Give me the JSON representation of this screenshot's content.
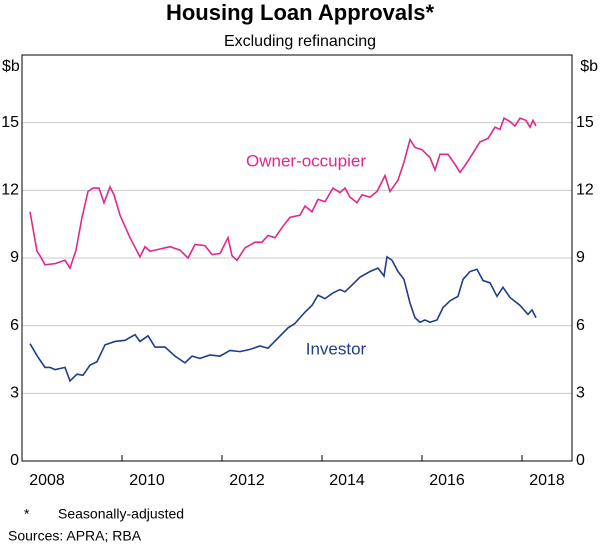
{
  "chart_data": {
    "type": "line",
    "title": "Housing Loan Approvals*",
    "subtitle": "Excluding refinancing",
    "y_label": "$b",
    "y2_label": "$b",
    "footnote_marker": "*",
    "footnote": "Seasonally-adjusted",
    "sources": "Sources: APRA; RBA",
    "xlim": [
      2008,
      2019
    ],
    "xticks": [
      2008,
      2010,
      2012,
      2014,
      2016,
      2018
    ],
    "ylim": [
      0,
      18
    ],
    "yticks": [
      0,
      3,
      6,
      9,
      12,
      15
    ],
    "y2lim": [
      0,
      18
    ],
    "y2ticks": [
      0,
      3,
      6,
      9,
      12,
      15
    ],
    "grid": true,
    "series": [
      {
        "name": "Owner-occupier",
        "color": "#e0288c",
        "x": [
          2008.16,
          2008.3,
          2008.36,
          2008.46,
          2008.66,
          2008.86,
          2008.96,
          2009.08,
          2009.2,
          2009.32,
          2009.42,
          2009.54,
          2009.64,
          2009.76,
          2009.84,
          2009.96,
          2010.16,
          2010.36,
          2010.46,
          2010.56,
          2010.76,
          2010.96,
          2011.16,
          2011.32,
          2011.46,
          2011.66,
          2011.8,
          2011.96,
          2012.12,
          2012.2,
          2012.3,
          2012.46,
          2012.66,
          2012.8,
          2012.92,
          2013.06,
          2013.2,
          2013.36,
          2013.56,
          2013.66,
          2013.8,
          2013.92,
          2014.06,
          2014.22,
          2014.36,
          2014.46,
          2014.56,
          2014.7,
          2014.8,
          2014.96,
          2015.1,
          2015.26,
          2015.36,
          2015.52,
          2015.64,
          2015.76,
          2015.86,
          2016.0,
          2016.16,
          2016.26,
          2016.36,
          2016.52,
          2016.66,
          2016.76,
          2016.86,
          2017.02,
          2017.16,
          2017.32,
          2017.46,
          2017.56,
          2017.64,
          2017.76,
          2017.86,
          2017.96,
          2018.08,
          2018.16,
          2018.22,
          2018.28
        ],
        "values": [
          11.05,
          9.3,
          9.1,
          8.7,
          8.75,
          8.9,
          8.55,
          9.35,
          10.8,
          11.95,
          12.1,
          12.1,
          11.45,
          12.15,
          11.8,
          10.9,
          9.9,
          9.05,
          9.5,
          9.3,
          9.4,
          9.5,
          9.35,
          9.0,
          9.6,
          9.55,
          9.15,
          9.2,
          9.9,
          9.1,
          8.9,
          9.45,
          9.7,
          9.7,
          10.0,
          9.9,
          10.35,
          10.8,
          10.9,
          11.3,
          11.05,
          11.6,
          11.5,
          12.1,
          11.9,
          12.1,
          11.7,
          11.45,
          11.8,
          11.7,
          11.95,
          12.65,
          11.95,
          12.45,
          13.25,
          14.25,
          13.9,
          13.8,
          13.45,
          12.9,
          13.6,
          13.6,
          13.15,
          12.8,
          13.1,
          13.65,
          14.15,
          14.3,
          14.8,
          14.7,
          15.2,
          15.05,
          14.85,
          15.2,
          15.1,
          14.8,
          15.1,
          14.85
        ]
      },
      {
        "name": "Investor",
        "color": "#1f3d8c",
        "x": [
          2008.16,
          2008.32,
          2008.46,
          2008.56,
          2008.66,
          2008.86,
          2008.96,
          2009.1,
          2009.22,
          2009.36,
          2009.5,
          2009.66,
          2009.86,
          2010.06,
          2010.26,
          2010.36,
          2010.52,
          2010.66,
          2010.86,
          2011.06,
          2011.26,
          2011.4,
          2011.56,
          2011.76,
          2011.96,
          2012.16,
          2012.36,
          2012.56,
          2012.76,
          2012.92,
          2013.12,
          2013.32,
          2013.46,
          2013.66,
          2013.8,
          2013.92,
          2014.06,
          2014.22,
          2014.36,
          2014.46,
          2014.6,
          2014.76,
          2014.96,
          2015.12,
          2015.24,
          2015.3,
          2015.4,
          2015.52,
          2015.64,
          2015.76,
          2015.86,
          2015.96,
          2016.06,
          2016.16,
          2016.3,
          2016.42,
          2016.56,
          2016.72,
          2016.82,
          2016.96,
          2017.1,
          2017.22,
          2017.36,
          2017.5,
          2017.62,
          2017.76,
          2017.96,
          2018.12,
          2018.2,
          2018.28
        ],
        "values": [
          5.2,
          4.6,
          4.15,
          4.15,
          4.05,
          4.15,
          3.55,
          3.85,
          3.8,
          4.25,
          4.4,
          5.15,
          5.3,
          5.35,
          5.6,
          5.3,
          5.55,
          5.05,
          5.05,
          4.65,
          4.35,
          4.65,
          4.55,
          4.7,
          4.65,
          4.9,
          4.85,
          4.95,
          5.1,
          5.0,
          5.45,
          5.9,
          6.1,
          6.6,
          6.9,
          7.35,
          7.2,
          7.45,
          7.6,
          7.5,
          7.8,
          8.15,
          8.4,
          8.55,
          8.2,
          9.05,
          8.9,
          8.4,
          8.05,
          7.0,
          6.35,
          6.15,
          6.25,
          6.15,
          6.25,
          6.8,
          7.1,
          7.3,
          8.05,
          8.4,
          8.5,
          8.0,
          7.9,
          7.3,
          7.7,
          7.25,
          6.9,
          6.5,
          6.7,
          6.35
        ]
      }
    ]
  }
}
